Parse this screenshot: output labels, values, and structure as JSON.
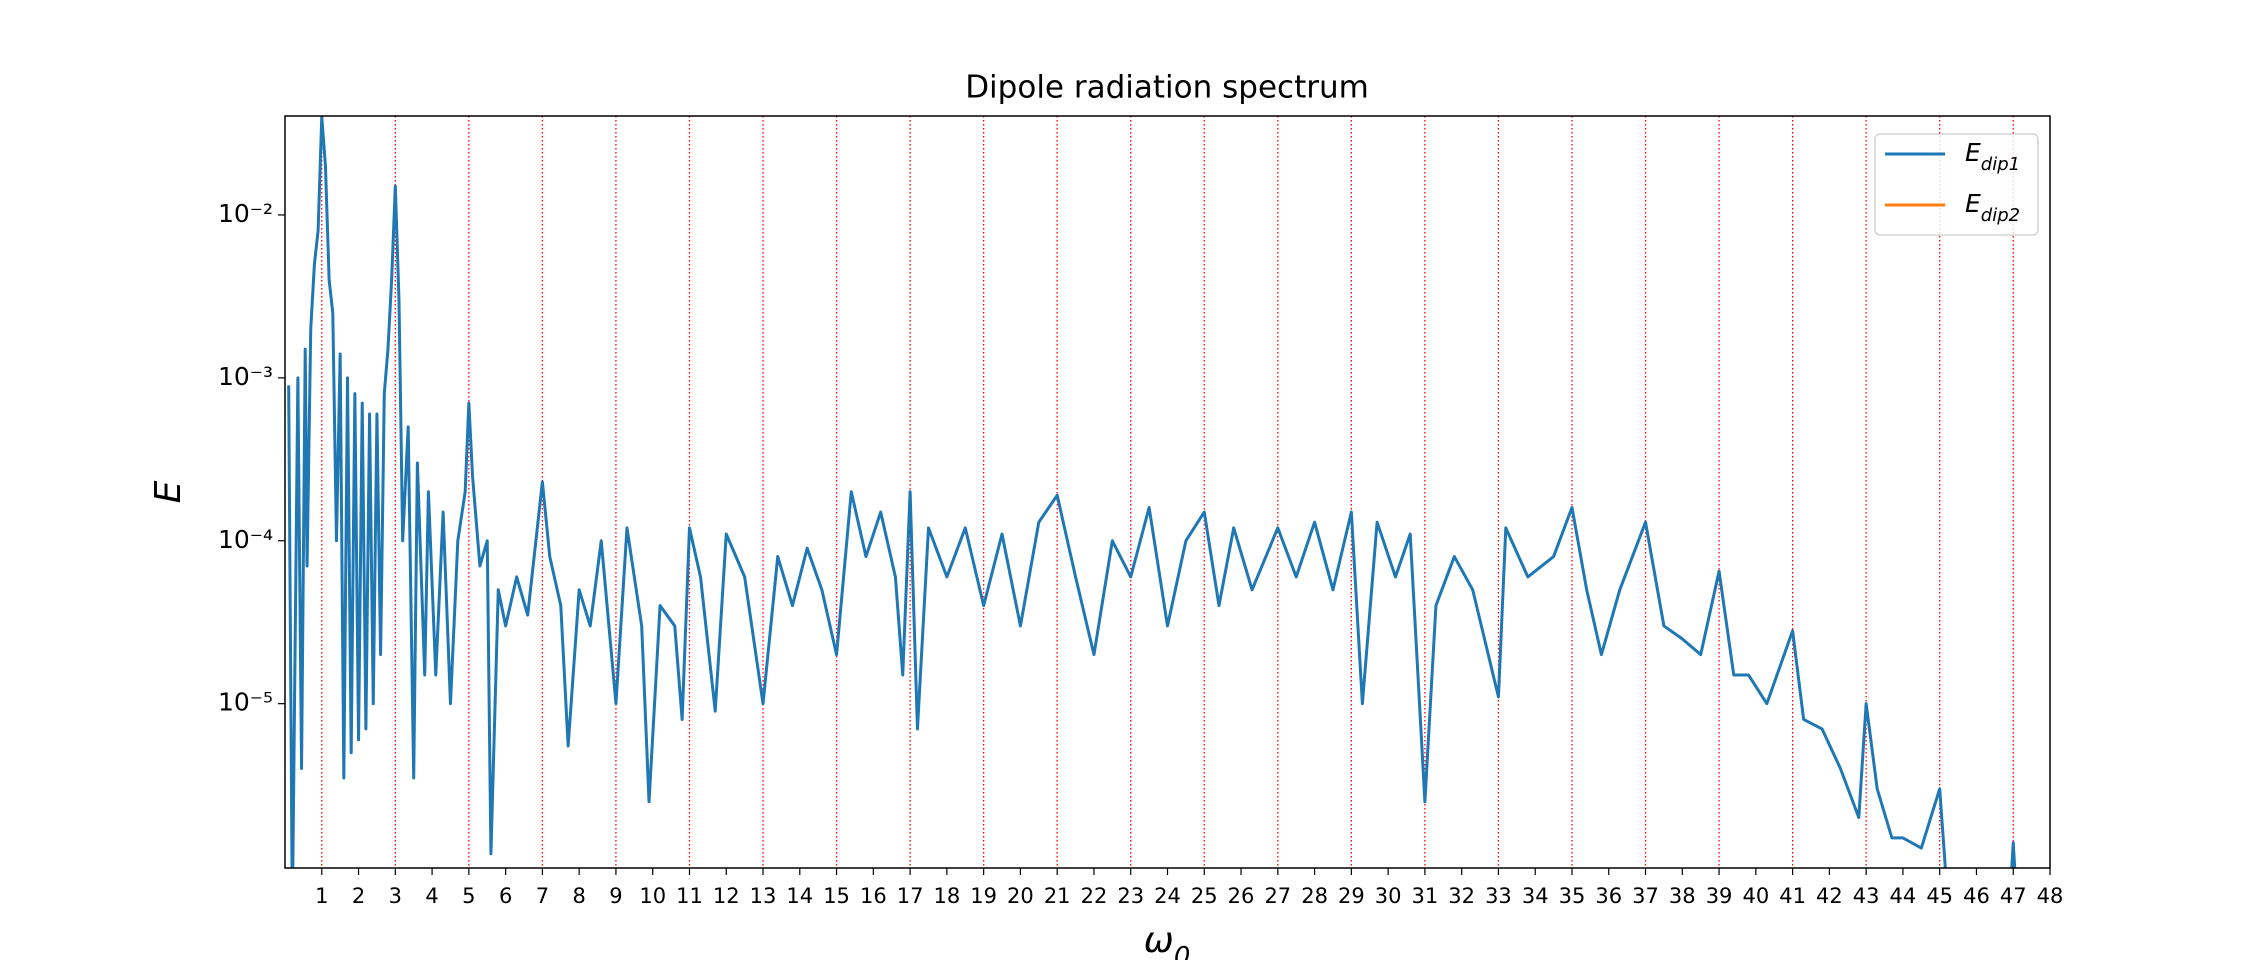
{
  "chart_data": {
    "type": "line",
    "title": "Dipole radiation spectrum",
    "x_label": "ω0",
    "y_label": "E",
    "log_y": true,
    "xlim": [
      0,
      48
    ],
    "ylim": [
      9.8e-07,
      0.0405
    ],
    "xticks": [
      1,
      2,
      3,
      4,
      5,
      6,
      7,
      8,
      9,
      10,
      11,
      12,
      13,
      14,
      15,
      16,
      17,
      18,
      19,
      20,
      21,
      22,
      23,
      24,
      25,
      26,
      27,
      28,
      29,
      30,
      31,
      32,
      33,
      34,
      35,
      36,
      37,
      38,
      39,
      40,
      41,
      42,
      43,
      44,
      45,
      46,
      47,
      48
    ],
    "yticks": [
      {
        "value": 1e-05,
        "label": "10⁻⁵"
      },
      {
        "value": 0.0001,
        "label": "10⁻⁴"
      },
      {
        "value": 0.001,
        "label": "10⁻³"
      },
      {
        "value": 0.01,
        "label": "10⁻²"
      }
    ],
    "vlines": [
      1,
      3,
      5,
      7,
      9,
      11,
      13,
      15,
      17,
      19,
      21,
      23,
      25,
      27,
      29,
      31,
      33,
      35,
      37,
      39,
      41,
      43,
      45,
      47
    ],
    "vline_color": "#ff0000",
    "legend": "upper right",
    "x": [
      0.1,
      0.2,
      0.35,
      0.45,
      0.55,
      0.6,
      0.7,
      0.8,
      0.9,
      1.0,
      1.1,
      1.2,
      1.3,
      1.4,
      1.5,
      1.6,
      1.7,
      1.8,
      1.9,
      2.0,
      2.1,
      2.2,
      2.3,
      2.4,
      2.5,
      2.6,
      2.7,
      2.8,
      2.9,
      3.0,
      3.1,
      3.2,
      3.35,
      3.5,
      3.6,
      3.8,
      3.9,
      4.1,
      4.3,
      4.5,
      4.7,
      4.9,
      5.0,
      5.1,
      5.3,
      5.5,
      5.6,
      5.8,
      6.0,
      6.3,
      6.6,
      7.0,
      7.2,
      7.5,
      7.7,
      8.0,
      8.3,
      8.6,
      9.0,
      9.3,
      9.7,
      9.9,
      10.2,
      10.6,
      10.8,
      11.0,
      11.3,
      11.7,
      12.0,
      12.5,
      13.0,
      13.4,
      13.8,
      14.2,
      14.6,
      15.0,
      15.4,
      15.8,
      16.2,
      16.6,
      16.8,
      17.0,
      17.2,
      17.5,
      18.0,
      18.5,
      19.0,
      19.5,
      20.0,
      20.5,
      21.0,
      21.5,
      22.0,
      22.5,
      23.0,
      23.5,
      24.0,
      24.5,
      25.0,
      25.4,
      25.8,
      26.3,
      27.0,
      27.5,
      28.0,
      28.5,
      29.0,
      29.3,
      29.7,
      30.2,
      30.6,
      31.0,
      31.3,
      31.8,
      32.3,
      33.0,
      33.2,
      33.8,
      34.5,
      35.0,
      35.4,
      35.8,
      36.3,
      37.0,
      37.5,
      38.0,
      38.5,
      39.0,
      39.4,
      39.8,
      40.3,
      41.0,
      41.3,
      41.8,
      42.3,
      42.8,
      43.0,
      43.3,
      43.7,
      44.0,
      44.5,
      45.0,
      45.2,
      46.95,
      47.0,
      47.05
    ],
    "series": [
      {
        "name": "Edip1",
        "color": "#1f77b4",
        "values": [
          0.0009,
          5e-07,
          0.001,
          4e-06,
          0.0015,
          7e-05,
          0.002,
          0.005,
          0.008,
          0.04,
          0.02,
          0.004,
          0.0025,
          0.0001,
          0.0014,
          3.5e-06,
          0.001,
          5e-06,
          0.0008,
          6e-06,
          0.0007,
          7e-06,
          0.0006,
          1e-05,
          0.0006,
          2e-05,
          0.0008,
          0.0015,
          0.004,
          0.015,
          0.003,
          0.0001,
          0.0005,
          3.5e-06,
          0.0003,
          1.5e-05,
          0.0002,
          1.5e-05,
          0.00015,
          1e-05,
          0.0001,
          0.0002,
          0.0007,
          0.00025,
          7e-05,
          0.0001,
          1.2e-06,
          5e-05,
          3e-05,
          6e-05,
          3.5e-05,
          0.00023,
          8e-05,
          4e-05,
          5.5e-06,
          5e-05,
          3e-05,
          0.0001,
          1e-05,
          0.00012,
          3e-05,
          2.5e-06,
          4e-05,
          3e-05,
          8e-06,
          0.00012,
          6e-05,
          9e-06,
          0.00011,
          6e-05,
          1e-05,
          8e-05,
          4e-05,
          9e-05,
          5e-05,
          2e-05,
          0.0002,
          8e-05,
          0.00015,
          6e-05,
          1.5e-05,
          0.0002,
          7e-06,
          0.00012,
          6e-05,
          0.00012,
          4e-05,
          0.00011,
          3e-05,
          0.00013,
          0.00019,
          6e-05,
          2e-05,
          0.0001,
          6e-05,
          0.00016,
          3e-05,
          0.0001,
          0.00015,
          4e-05,
          0.00012,
          5e-05,
          0.00012,
          6e-05,
          0.00013,
          5e-05,
          0.00015,
          1e-05,
          0.00013,
          6e-05,
          0.00011,
          2.5e-06,
          4e-05,
          8e-05,
          5e-05,
          1.1e-05,
          0.00012,
          6e-05,
          8e-05,
          0.00016,
          5e-05,
          2e-05,
          5e-05,
          0.00013,
          3e-05,
          2.5e-05,
          2e-05,
          6.5e-05,
          1.5e-05,
          1.5e-05,
          1e-05,
          2.8e-05,
          8e-06,
          7e-06,
          4e-06,
          2e-06,
          1e-05,
          3e-06,
          1.5e-06,
          1.5e-06,
          1.3e-06,
          3e-06,
          7e-07,
          9e-07,
          1.4e-06,
          9e-07
        ]
      },
      {
        "name": "Edip2",
        "color": "#ff7f0e",
        "values": [
          null,
          null,
          null,
          null,
          null,
          null,
          null,
          null,
          null,
          null,
          null,
          null,
          null,
          null,
          null,
          null,
          null,
          null,
          null,
          null,
          null,
          null,
          null,
          null,
          null,
          null,
          null,
          null,
          null,
          null,
          null,
          null,
          null,
          null,
          null,
          null,
          null,
          null,
          null,
          null,
          null,
          null,
          null,
          null,
          null,
          null,
          null,
          null,
          null,
          null,
          null,
          null,
          null,
          null,
          null,
          null,
          null,
          null,
          null,
          null,
          null,
          null,
          null,
          null,
          null,
          null,
          null,
          null,
          null,
          null,
          null,
          null,
          null,
          null,
          null,
          null,
          null,
          null,
          null,
          null,
          null,
          null,
          null,
          null,
          null,
          null,
          null,
          null,
          null,
          null,
          null,
          null,
          null,
          null,
          null,
          null,
          null,
          null,
          null,
          null,
          null,
          null,
          null,
          null,
          null,
          null,
          null,
          null,
          null,
          null,
          null,
          null,
          null,
          null,
          null,
          null,
          null,
          null,
          null,
          null,
          null,
          null,
          null,
          null,
          null,
          null,
          null,
          null,
          null,
          null,
          null,
          null,
          null,
          null,
          null,
          null,
          null,
          null,
          null,
          null,
          null,
          null,
          null,
          null,
          null,
          null
        ]
      }
    ]
  }
}
